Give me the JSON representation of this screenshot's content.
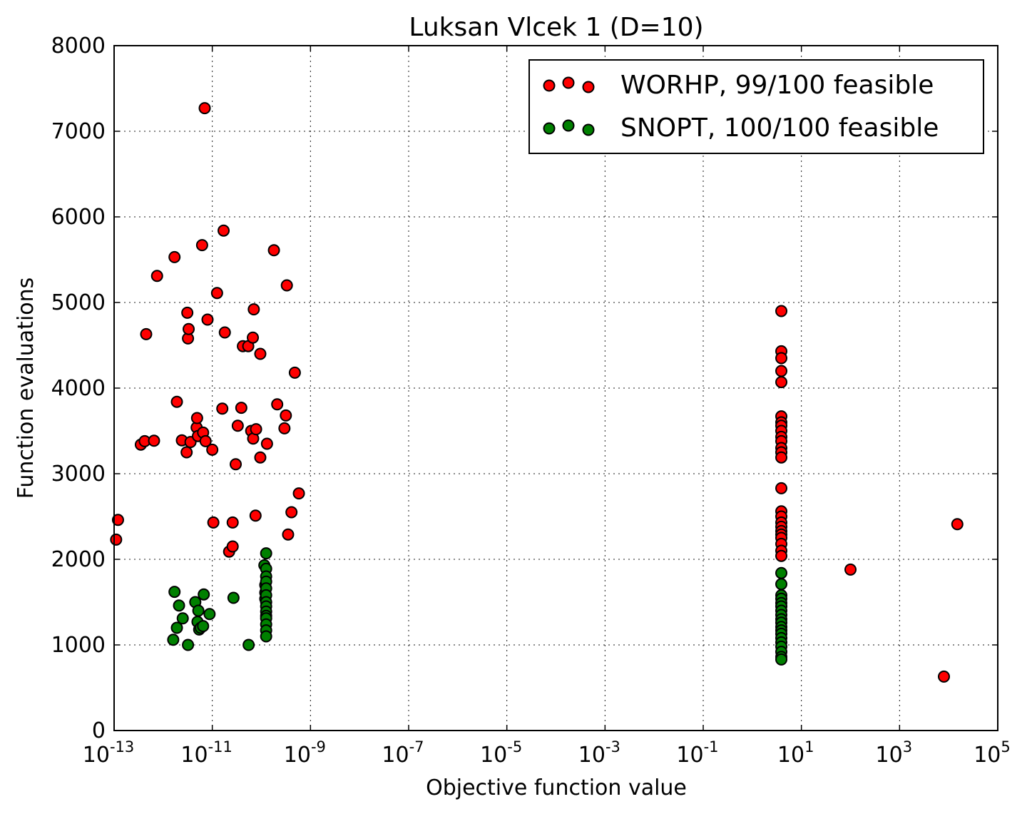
{
  "colors": {
    "worhp": "#ff0000",
    "snopt": "#008000",
    "edge": "#000000"
  },
  "chart_data": {
    "type": "scatter",
    "title": "Luksan Vlcek 1 (D=10)",
    "xlabel": "Objective function value",
    "ylabel": "Function evaluations",
    "xscale": "log",
    "xlim": [
      1e-13,
      100000.0
    ],
    "ylim": [
      0,
      8000
    ],
    "grid": true,
    "legend_position": "top-right",
    "x_ticks": [
      {
        "base": "10",
        "exp": "-13"
      },
      {
        "base": "10",
        "exp": "-11"
      },
      {
        "base": "10",
        "exp": "-9"
      },
      {
        "base": "10",
        "exp": "-7"
      },
      {
        "base": "10",
        "exp": "-5"
      },
      {
        "base": "10",
        "exp": "-3"
      },
      {
        "base": "10",
        "exp": "-1"
      },
      {
        "base": "10",
        "exp": "1"
      },
      {
        "base": "10",
        "exp": "3"
      },
      {
        "base": "10",
        "exp": "5"
      }
    ],
    "x_tick_values": [
      1e-13,
      1e-11,
      1e-09,
      1e-07,
      1e-05,
      0.001,
      0.1,
      10.0,
      1000.0,
      100000.0
    ],
    "y_ticks": [
      "0",
      "1000",
      "2000",
      "3000",
      "4000",
      "5000",
      "6000",
      "7000",
      "8000"
    ],
    "y_tick_values": [
      0,
      1000,
      2000,
      3000,
      4000,
      5000,
      6000,
      7000,
      8000
    ],
    "series": [
      {
        "name": "WORHP, 99/100 feasible",
        "color": "#ff0000",
        "points": [
          [
            1.2e-13,
            2460
          ],
          [
            1.1e-13,
            2230
          ],
          [
            3.5e-13,
            3340
          ],
          [
            4.2e-13,
            3380
          ],
          [
            4.5e-13,
            4630
          ],
          [
            6.5e-13,
            3385
          ],
          [
            7.5e-13,
            5310
          ],
          [
            1.7e-12,
            5530
          ],
          [
            1.9e-12,
            3840
          ],
          [
            2.4e-12,
            3390
          ],
          [
            3e-12,
            3250
          ],
          [
            3.1e-12,
            4880
          ],
          [
            3.2e-12,
            4580
          ],
          [
            3.3e-12,
            4690
          ],
          [
            3.6e-12,
            3370
          ],
          [
            4.8e-12,
            3540
          ],
          [
            4.9e-12,
            3650
          ],
          [
            5.1e-12,
            3440
          ],
          [
            6.5e-12,
            3480
          ],
          [
            6.2e-12,
            5670
          ],
          [
            7e-12,
            7270
          ],
          [
            7.3e-12,
            3380
          ],
          [
            8e-12,
            4800
          ],
          [
            1e-11,
            3280
          ],
          [
            1.05e-11,
            2430
          ],
          [
            1.25e-11,
            5110
          ],
          [
            1.7e-11,
            5840
          ],
          [
            1.6e-11,
            3760
          ],
          [
            1.8e-11,
            4650
          ],
          [
            2.2e-11,
            2090
          ],
          [
            2.6e-11,
            2150
          ],
          [
            2.6e-11,
            2430
          ],
          [
            3e-11,
            3110
          ],
          [
            3.3e-11,
            3560
          ],
          [
            3.9e-11,
            3770
          ],
          [
            4.2e-11,
            4490
          ],
          [
            5.4e-11,
            4490
          ],
          [
            6.2e-11,
            3500
          ],
          [
            6.8e-11,
            3410
          ],
          [
            6.7e-11,
            4590
          ],
          [
            7e-11,
            4920
          ],
          [
            7.6e-11,
            2510
          ],
          [
            7.8e-11,
            3520
          ],
          [
            9.5e-11,
            3190
          ],
          [
            9.5e-11,
            4400
          ],
          [
            1.3e-10,
            3350
          ],
          [
            1.8e-10,
            5610
          ],
          [
            2.1e-10,
            3810
          ],
          [
            2.95e-10,
            3530
          ],
          [
            3.15e-10,
            3680
          ],
          [
            3.3e-10,
            5200
          ],
          [
            3.5e-10,
            2290
          ],
          [
            4.1e-10,
            2550
          ],
          [
            4.8e-10,
            4180
          ],
          [
            5.8e-10,
            2770
          ],
          [
            3.9,
            4900
          ],
          [
            3.9,
            4430
          ],
          [
            3.9,
            4350
          ],
          [
            3.9,
            4200
          ],
          [
            3.9,
            4070
          ],
          [
            3.9,
            3670
          ],
          [
            3.9,
            3600
          ],
          [
            3.9,
            3560
          ],
          [
            3.9,
            3500
          ],
          [
            3.9,
            3430
          ],
          [
            3.9,
            3380
          ],
          [
            3.9,
            3300
          ],
          [
            3.9,
            3250
          ],
          [
            3.9,
            3190
          ],
          [
            3.9,
            2830
          ],
          [
            3.9,
            2560
          ],
          [
            3.9,
            2500
          ],
          [
            3.9,
            2430
          ],
          [
            3.9,
            2380
          ],
          [
            3.9,
            2330
          ],
          [
            3.9,
            2290
          ],
          [
            3.9,
            2250
          ],
          [
            3.9,
            2180
          ],
          [
            3.9,
            2100
          ],
          [
            3.9,
            2040
          ],
          [
            100,
            1880
          ],
          [
            8000,
            630
          ],
          [
            15000,
            2410
          ]
        ]
      },
      {
        "name": "SNOPT, 100/100 feasible",
        "color": "#008000",
        "points": [
          [
            1.6e-12,
            1060
          ],
          [
            1.7e-12,
            1620
          ],
          [
            1.9e-12,
            1200
          ],
          [
            2.1e-12,
            1460
          ],
          [
            2.5e-12,
            1310
          ],
          [
            3.2e-12,
            1000
          ],
          [
            4.5e-12,
            1500
          ],
          [
            5e-12,
            1270
          ],
          [
            5.2e-12,
            1400
          ],
          [
            5.4e-12,
            1180
          ],
          [
            5.8e-12,
            1200
          ],
          [
            6.5e-12,
            1220
          ],
          [
            6.7e-12,
            1590
          ],
          [
            8.8e-12,
            1360
          ],
          [
            2.7e-11,
            1550
          ],
          [
            5.5e-11,
            1000
          ],
          [
            1.15e-10,
            1930
          ],
          [
            1.2e-10,
            1610
          ],
          [
            1.2e-10,
            1700
          ],
          [
            1.2e-10,
            1540
          ],
          [
            1.25e-10,
            2070
          ],
          [
            1.25e-10,
            1890
          ],
          [
            1.25e-10,
            1800
          ],
          [
            1.25e-10,
            1740
          ],
          [
            1.25e-10,
            1660
          ],
          [
            1.25e-10,
            1580
          ],
          [
            1.25e-10,
            1500
          ],
          [
            1.25e-10,
            1450
          ],
          [
            1.25e-10,
            1390
          ],
          [
            1.25e-10,
            1340
          ],
          [
            1.25e-10,
            1310
          ],
          [
            1.25e-10,
            1240
          ],
          [
            1.25e-10,
            1170
          ],
          [
            1.25e-10,
            1100
          ],
          [
            3.9,
            1840
          ],
          [
            3.9,
            1710
          ],
          [
            3.9,
            1580
          ],
          [
            3.9,
            1540
          ],
          [
            3.9,
            1490
          ],
          [
            3.9,
            1450
          ],
          [
            3.9,
            1400
          ],
          [
            3.9,
            1350
          ],
          [
            3.9,
            1300
          ],
          [
            3.9,
            1260
          ],
          [
            3.9,
            1210
          ],
          [
            3.9,
            1170
          ],
          [
            3.9,
            1130
          ],
          [
            3.9,
            1080
          ],
          [
            3.9,
            1030
          ],
          [
            3.9,
            980
          ],
          [
            3.9,
            920
          ],
          [
            3.9,
            860
          ],
          [
            3.9,
            830
          ]
        ]
      }
    ]
  }
}
